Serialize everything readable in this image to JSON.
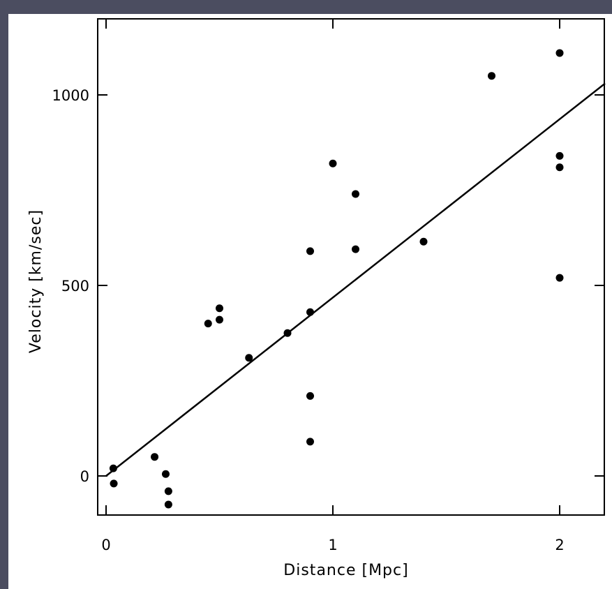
{
  "chart_data": {
    "type": "scatter",
    "xlabel": "Distance [Mpc]",
    "ylabel": "Velocity [km/sec]",
    "xlim": [
      0,
      2.2
    ],
    "ylim": [
      -100,
      1200
    ],
    "x_ticks": [
      0,
      1,
      2
    ],
    "x_tick_labels": [
      "0",
      "1",
      "2"
    ],
    "y_ticks": [
      0,
      500,
      1000
    ],
    "y_tick_labels": [
      "0",
      "500",
      "1000"
    ],
    "grid": false,
    "series": [
      {
        "points": [
          [
            0.032,
            20
          ],
          [
            0.034,
            -20
          ],
          [
            0.214,
            50
          ],
          [
            0.263,
            5
          ],
          [
            0.275,
            -40
          ],
          [
            0.275,
            -75
          ],
          [
            0.45,
            400
          ],
          [
            0.5,
            410
          ],
          [
            0.5,
            440
          ],
          [
            0.63,
            310
          ],
          [
            0.8,
            375
          ],
          [
            0.9,
            210
          ],
          [
            0.9,
            90
          ],
          [
            0.9,
            430
          ],
          [
            0.9,
            590
          ],
          [
            1.0,
            820
          ],
          [
            1.1,
            740
          ],
          [
            1.1,
            595
          ],
          [
            1.4,
            615
          ],
          [
            1.7,
            1050
          ],
          [
            2.0,
            520
          ],
          [
            2.0,
            810
          ],
          [
            2.0,
            840
          ],
          [
            2.0,
            1110
          ]
        ]
      }
    ],
    "fit_line": {
      "x": [
        0,
        2.2
      ],
      "y": [
        0,
        1030
      ]
    },
    "colors": {
      "marker": "#000000",
      "line": "#000000",
      "frame_background": "#4b4d60",
      "plot_background": "#ffffff"
    }
  }
}
